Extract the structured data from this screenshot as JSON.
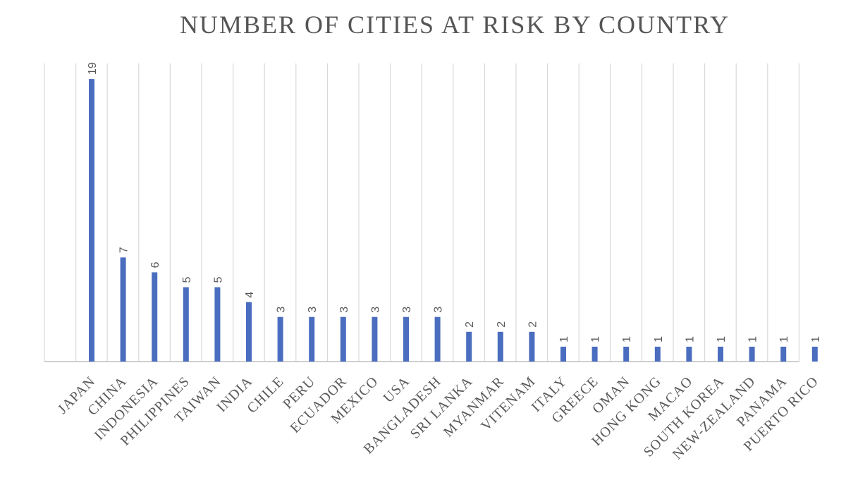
{
  "chart_data": {
    "type": "bar",
    "title": "NUMBER OF CITIES AT RISK BY COUNTRY",
    "categories": [
      "JAPAN",
      "CHINA",
      "INDONESIA",
      "PHILIPPINES",
      "TAIWAN",
      "INDIA",
      "CHILE",
      "PERU",
      "ECUADOR",
      "MEXICO",
      "USA",
      "BANGLADESH",
      "SRI LANKA",
      "MYANMAR",
      "VITENAM",
      "ITALY",
      "GREECE",
      "OMAN",
      "HONG KONG",
      "MACAO",
      "SOUTH KOREA",
      "NEW-ZEALAND",
      "PANAMA",
      "PUERTO RICO"
    ],
    "values": [
      19,
      7,
      6,
      5,
      5,
      4,
      3,
      3,
      3,
      3,
      3,
      3,
      2,
      2,
      2,
      1,
      1,
      1,
      1,
      1,
      1,
      1,
      1,
      1
    ],
    "ylim": [
      0,
      20
    ],
    "grid": true,
    "data_labels": true,
    "bar_color": "#4a6dbf",
    "xlabel": "",
    "ylabel": ""
  }
}
